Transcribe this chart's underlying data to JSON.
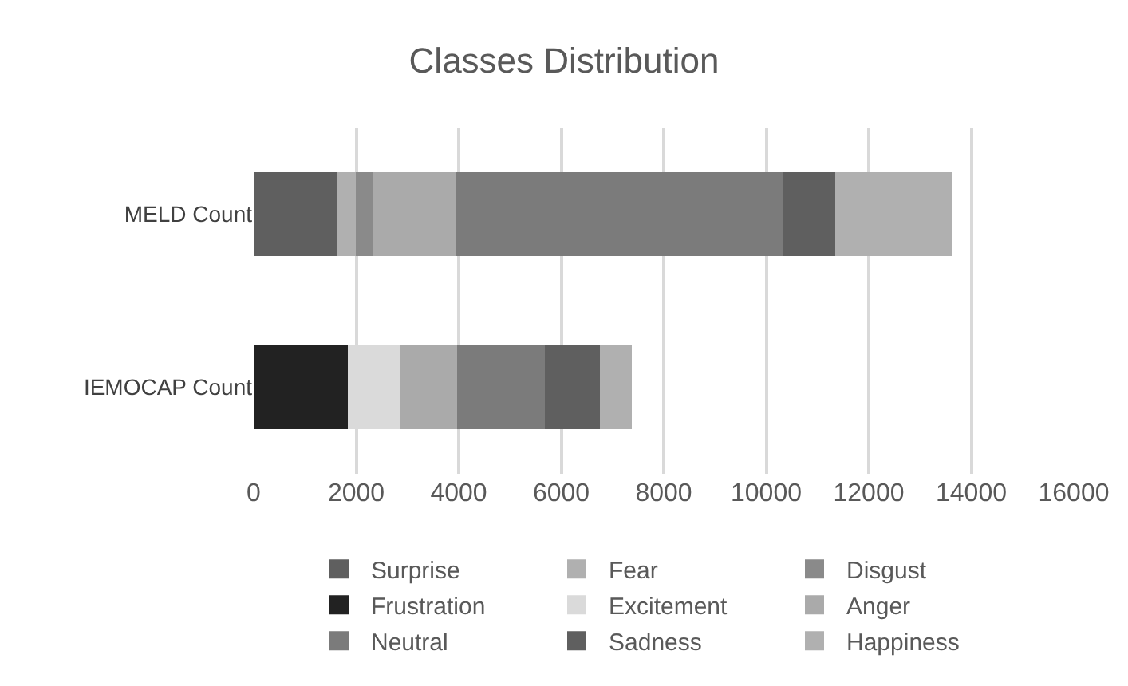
{
  "chart_data": {
    "type": "bar",
    "title": "Classes Distribution",
    "orientation": "horizontal",
    "stacked": true,
    "categories": [
      "MELD Count",
      "IEMOCAP Count"
    ],
    "series": [
      {
        "name": "Surprise",
        "color": "#5f5f5f",
        "values": [
          1630,
          null
        ]
      },
      {
        "name": "Fear",
        "color": "#b0b0b0",
        "values": [
          360,
          null
        ]
      },
      {
        "name": "Disgust",
        "color": "#8a8a8a",
        "values": [
          350,
          null
        ]
      },
      {
        "name": "Frustration",
        "color": "#222222",
        "values": [
          null,
          1830
        ]
      },
      {
        "name": "Excitement",
        "color": "#dadada",
        "values": [
          null,
          1040
        ]
      },
      {
        "name": "Anger",
        "color": "#aaaaaa",
        "values": [
          1610,
          1100
        ]
      },
      {
        "name": "Neutral",
        "color": "#7b7b7b",
        "values": [
          6390,
          1710
        ]
      },
      {
        "name": "Sadness",
        "color": "#5f5f5f",
        "values": [
          1000,
          1070
        ]
      },
      {
        "name": "Happiness",
        "color": "#b0b0b0",
        "values": [
          2300,
          620
        ]
      }
    ],
    "xlim": [
      0,
      16000
    ],
    "xticks": [
      0,
      2000,
      4000,
      6000,
      8000,
      10000,
      12000,
      14000,
      16000
    ],
    "grid": "x",
    "legend": "bottom"
  }
}
